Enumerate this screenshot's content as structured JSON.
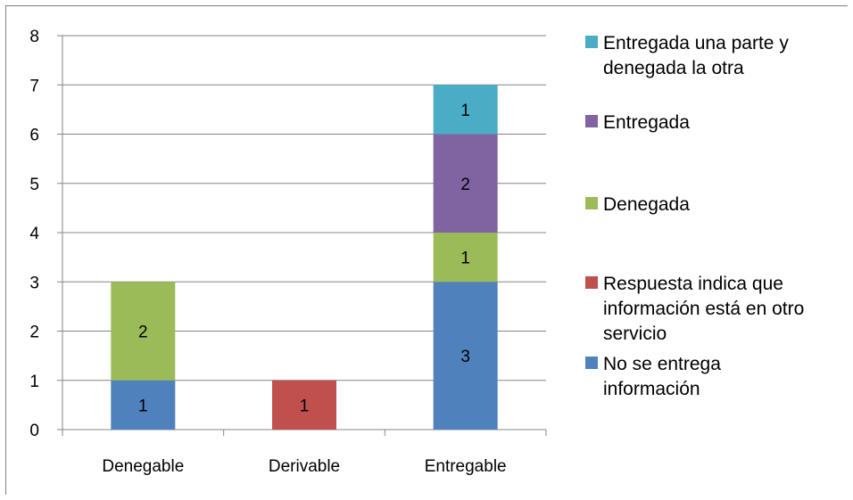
{
  "chart_data": {
    "type": "bar",
    "stacked": true,
    "categories": [
      "Denegable",
      "Derivable",
      "Entregable"
    ],
    "ylim": [
      0,
      8
    ],
    "yticks": [
      "0",
      "1",
      "2",
      "3",
      "4",
      "5",
      "6",
      "7",
      "8"
    ],
    "grid": true,
    "legend_position": "right",
    "series": [
      {
        "name": "No se entrega información",
        "legend_lines": [
          "No se entrega",
          "información"
        ],
        "color": "#4f81bd",
        "values": [
          1,
          0,
          3
        ]
      },
      {
        "name": "Respuesta indica que información está en otro servicio",
        "legend_lines": [
          "Respuesta indica que",
          "información está en otro",
          "servicio"
        ],
        "color": "#c0504d",
        "values": [
          0,
          1,
          0
        ]
      },
      {
        "name": "Denegada",
        "legend_lines": [
          "Denegada"
        ],
        "color": "#9bbb59",
        "values": [
          2,
          0,
          1
        ]
      },
      {
        "name": "Entregada",
        "legend_lines": [
          "Entregada"
        ],
        "color": "#8064a2",
        "values": [
          0,
          0,
          2
        ]
      },
      {
        "name": "Entregada una parte y denegada la otra",
        "legend_lines": [
          "Entregada una parte y",
          "denegada la otra"
        ],
        "color": "#4bacc6",
        "values": [
          0,
          0,
          1
        ]
      }
    ]
  }
}
